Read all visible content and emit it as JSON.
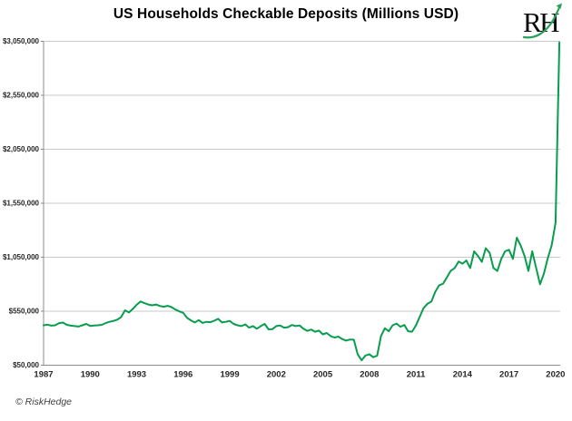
{
  "page": {
    "title": "US Households Checkable Deposits (Millions USD)"
  },
  "branding": {
    "logo_text": "RH",
    "copyright": "© RiskHedge",
    "accent_green": "#089d4d"
  },
  "chart_data": {
    "type": "line",
    "title": "US Households Checkable Deposits (Millions USD)",
    "xlabel": "",
    "ylabel": "",
    "unit": "Millions USD",
    "xlim": [
      1987,
      2020.3
    ],
    "ylim": [
      50000,
      3050000
    ],
    "grid": "horizontal",
    "legend": "none",
    "line_color": "#089d4d",
    "axis_color": "#8c8c8c",
    "gridline_color": "#c9c9c9",
    "x_ticks": [
      "1987",
      "1990",
      "1993",
      "1996",
      "1999",
      "2002",
      "2005",
      "2008",
      "2011",
      "2014",
      "2017",
      "2020"
    ],
    "y_ticks": [
      {
        "value": 50000,
        "label": "$50,000"
      },
      {
        "value": 550000,
        "label": "$550,000"
      },
      {
        "value": 1050000,
        "label": "$1,050,000"
      },
      {
        "value": 1550000,
        "label": "$1,550,000"
      },
      {
        "value": 2050000,
        "label": "$2,050,000"
      },
      {
        "value": 2550000,
        "label": "$2,550,000"
      },
      {
        "value": 3050000,
        "label": "$3,050,000"
      }
    ],
    "series": [
      {
        "name": "US Households Checkable Deposits",
        "color": "#089d4d",
        "points": [
          [
            1987,
            420000
          ],
          [
            1987.25,
            426000
          ],
          [
            1987.5,
            416000
          ],
          [
            1987.75,
            420000
          ],
          [
            1988,
            440000
          ],
          [
            1988.25,
            445000
          ],
          [
            1988.5,
            424000
          ],
          [
            1988.75,
            416000
          ],
          [
            1989,
            412000
          ],
          [
            1989.25,
            408000
          ],
          [
            1989.5,
            420000
          ],
          [
            1989.75,
            432000
          ],
          [
            1990,
            414000
          ],
          [
            1990.25,
            418000
          ],
          [
            1990.5,
            420000
          ],
          [
            1990.75,
            424000
          ],
          [
            1991,
            440000
          ],
          [
            1991.25,
            452000
          ],
          [
            1991.5,
            460000
          ],
          [
            1991.75,
            472000
          ],
          [
            1992,
            495000
          ],
          [
            1992.25,
            558000
          ],
          [
            1992.5,
            538000
          ],
          [
            1992.75,
            572000
          ],
          [
            1993,
            610000
          ],
          [
            1993.25,
            640000
          ],
          [
            1993.5,
            625000
          ],
          [
            1993.75,
            612000
          ],
          [
            1994,
            605000
          ],
          [
            1994.25,
            612000
          ],
          [
            1994.5,
            598000
          ],
          [
            1994.75,
            592000
          ],
          [
            1995,
            600000
          ],
          [
            1995.25,
            588000
          ],
          [
            1995.5,
            565000
          ],
          [
            1995.75,
            548000
          ],
          [
            1996,
            535000
          ],
          [
            1996.25,
            488000
          ],
          [
            1996.5,
            465000
          ],
          [
            1996.75,
            446000
          ],
          [
            1997,
            468000
          ],
          [
            1997.25,
            442000
          ],
          [
            1997.5,
            452000
          ],
          [
            1997.75,
            448000
          ],
          [
            1998,
            462000
          ],
          [
            1998.25,
            479000
          ],
          [
            1998.5,
            446000
          ],
          [
            1998.75,
            452000
          ],
          [
            1999,
            460000
          ],
          [
            1999.25,
            432000
          ],
          [
            1999.5,
            420000
          ],
          [
            1999.75,
            412000
          ],
          [
            2000,
            428000
          ],
          [
            2000.25,
            398000
          ],
          [
            2000.5,
            412000
          ],
          [
            2000.75,
            388000
          ],
          [
            2001,
            412000
          ],
          [
            2001.25,
            432000
          ],
          [
            2001.5,
            382000
          ],
          [
            2001.75,
            384000
          ],
          [
            2002,
            412000
          ],
          [
            2002.25,
            418000
          ],
          [
            2002.5,
            398000
          ],
          [
            2002.75,
            402000
          ],
          [
            2003,
            422000
          ],
          [
            2003.25,
            412000
          ],
          [
            2003.5,
            418000
          ],
          [
            2003.75,
            388000
          ],
          [
            2004,
            368000
          ],
          [
            2004.25,
            380000
          ],
          [
            2004.5,
            360000
          ],
          [
            2004.75,
            370000
          ],
          [
            2005,
            336000
          ],
          [
            2005.25,
            348000
          ],
          [
            2005.5,
            320000
          ],
          [
            2005.75,
            306000
          ],
          [
            2006,
            315000
          ],
          [
            2006.25,
            292000
          ],
          [
            2006.5,
            278000
          ],
          [
            2006.75,
            288000
          ],
          [
            2007,
            286000
          ],
          [
            2007.25,
            150000
          ],
          [
            2007.5,
            95000
          ],
          [
            2007.75,
            140000
          ],
          [
            2008,
            152000
          ],
          [
            2008.25,
            124000
          ],
          [
            2008.5,
            138000
          ],
          [
            2008.75,
            320000
          ],
          [
            2009,
            392000
          ],
          [
            2009.25,
            364000
          ],
          [
            2009.5,
            420000
          ],
          [
            2009.75,
            436000
          ],
          [
            2010,
            406000
          ],
          [
            2010.25,
            422000
          ],
          [
            2010.5,
            364000
          ],
          [
            2010.75,
            360000
          ],
          [
            2011,
            418000
          ],
          [
            2011.25,
            500000
          ],
          [
            2011.5,
            580000
          ],
          [
            2011.75,
            620000
          ],
          [
            2012,
            640000
          ],
          [
            2012.25,
            730000
          ],
          [
            2012.5,
            790000
          ],
          [
            2012.75,
            805000
          ],
          [
            2013,
            865000
          ],
          [
            2013.25,
            925000
          ],
          [
            2013.5,
            950000
          ],
          [
            2013.75,
            1010000
          ],
          [
            2014,
            990000
          ],
          [
            2014.25,
            1020000
          ],
          [
            2014.5,
            950000
          ],
          [
            2014.75,
            1105000
          ],
          [
            2015,
            1062000
          ],
          [
            2015.25,
            1007000
          ],
          [
            2015.5,
            1133000
          ],
          [
            2015.75,
            1090000
          ],
          [
            2016,
            950000
          ],
          [
            2016.25,
            923000
          ],
          [
            2016.5,
            1035000
          ],
          [
            2016.75,
            1105000
          ],
          [
            2017,
            1119000
          ],
          [
            2017.25,
            1035000
          ],
          [
            2017.5,
            1231000
          ],
          [
            2017.75,
            1160000
          ],
          [
            2018,
            1063000
          ],
          [
            2018.25,
            923000
          ],
          [
            2018.5,
            1105000
          ],
          [
            2018.75,
            951000
          ],
          [
            2019,
            800000
          ],
          [
            2019.25,
            900000
          ],
          [
            2019.5,
            1040000
          ],
          [
            2019.75,
            1160000
          ],
          [
            2020,
            1370000
          ],
          [
            2020.25,
            3040000
          ]
        ]
      }
    ]
  }
}
